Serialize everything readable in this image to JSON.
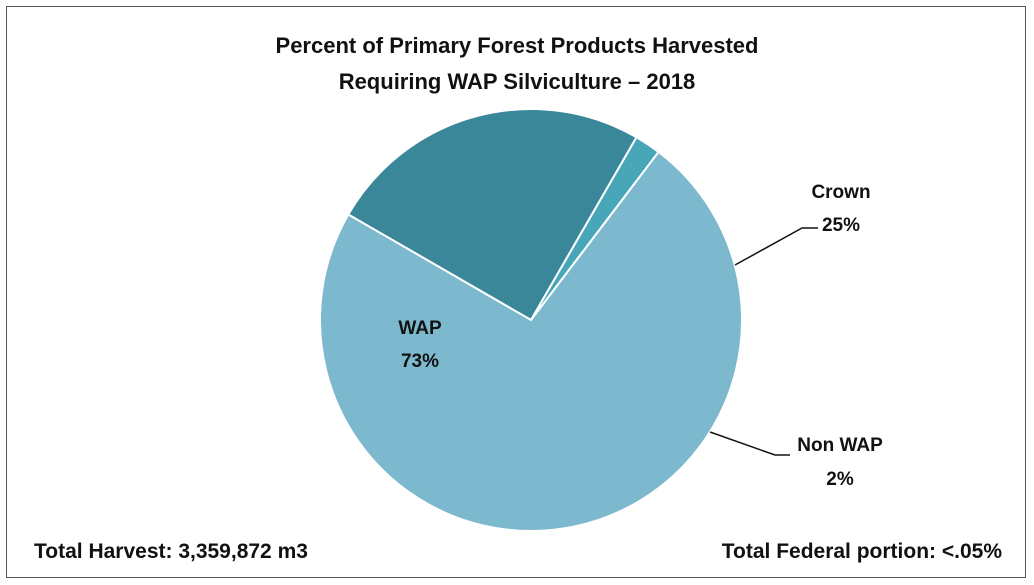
{
  "chart_data": {
    "type": "pie",
    "title_line1": "Percent of Primary Forest Products Harvested",
    "title_line2": "Requiring WAP Silviculture – 2018",
    "slices": [
      {
        "label": "WAP",
        "value": 73,
        "display": "73%",
        "color": "#7db9ce"
      },
      {
        "label": "Crown",
        "value": 25,
        "display": "25%",
        "color": "#3a8799"
      },
      {
        "label": "Non WAP",
        "value": 2,
        "display": "2%",
        "color": "#47a7b9"
      }
    ]
  },
  "footer": {
    "total_harvest": "Total Harvest:  3,359,872 m3",
    "federal_portion": "Total Federal portion:  <.05%"
  }
}
